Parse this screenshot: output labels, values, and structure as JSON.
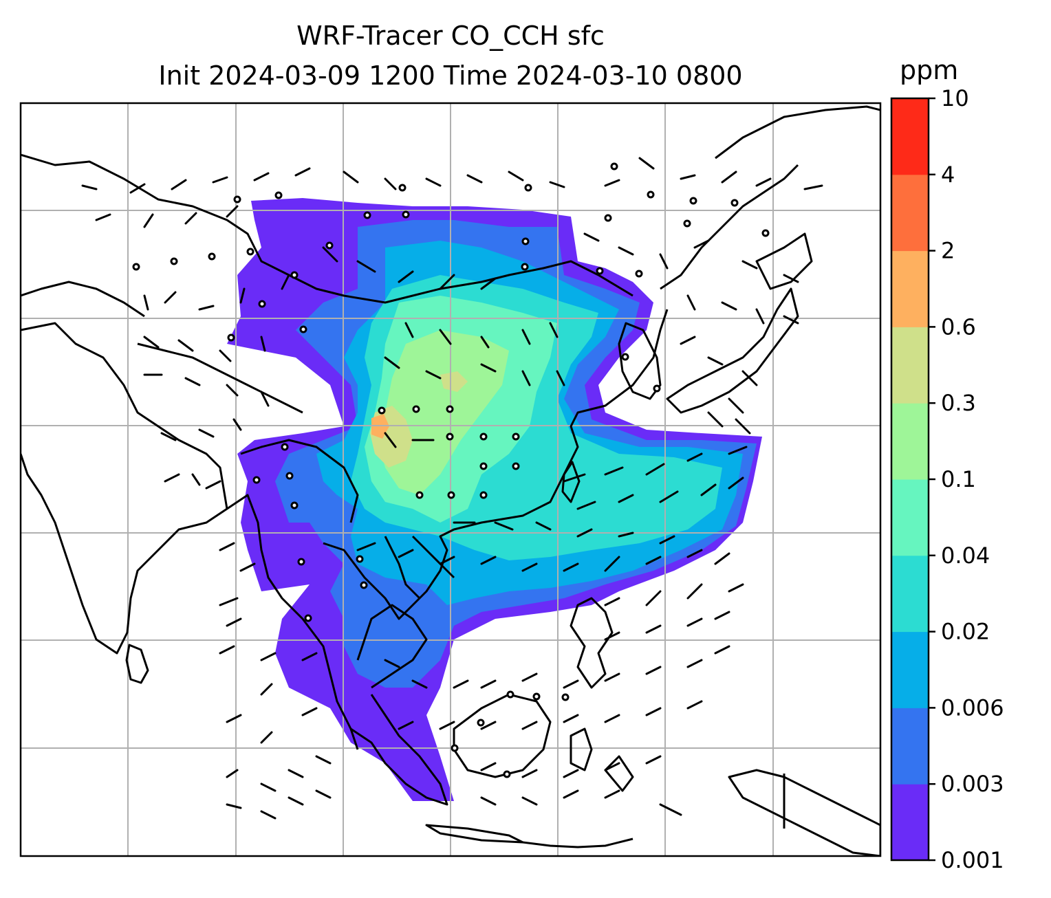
{
  "title": {
    "line1": "WRF-Tracer CO_CCH sfc",
    "line2": "Init 2024-03-09 1200 Time 2024-03-10 0800"
  },
  "colorbar": {
    "unit": "ppm",
    "levels": [
      "0.001",
      "0.003",
      "0.006",
      "0.02",
      "0.04",
      "0.1",
      "0.3",
      "0.6",
      "2",
      "4",
      "10"
    ],
    "colors": [
      "#6a2cf7",
      "#3474f0",
      "#06aee8",
      "#2cdcd2",
      "#66f5bf",
      "#9ef598",
      "#cfe08a",
      "#feb05f",
      "#fe6f3c",
      "#fe2a18"
    ]
  },
  "map": {
    "region": "East and Southeast Asia",
    "field": "CO_CCH surface tracer concentration",
    "overlays": [
      "coastlines",
      "country borders",
      "lat-lon gridlines",
      "wind barbs"
    ]
  }
}
